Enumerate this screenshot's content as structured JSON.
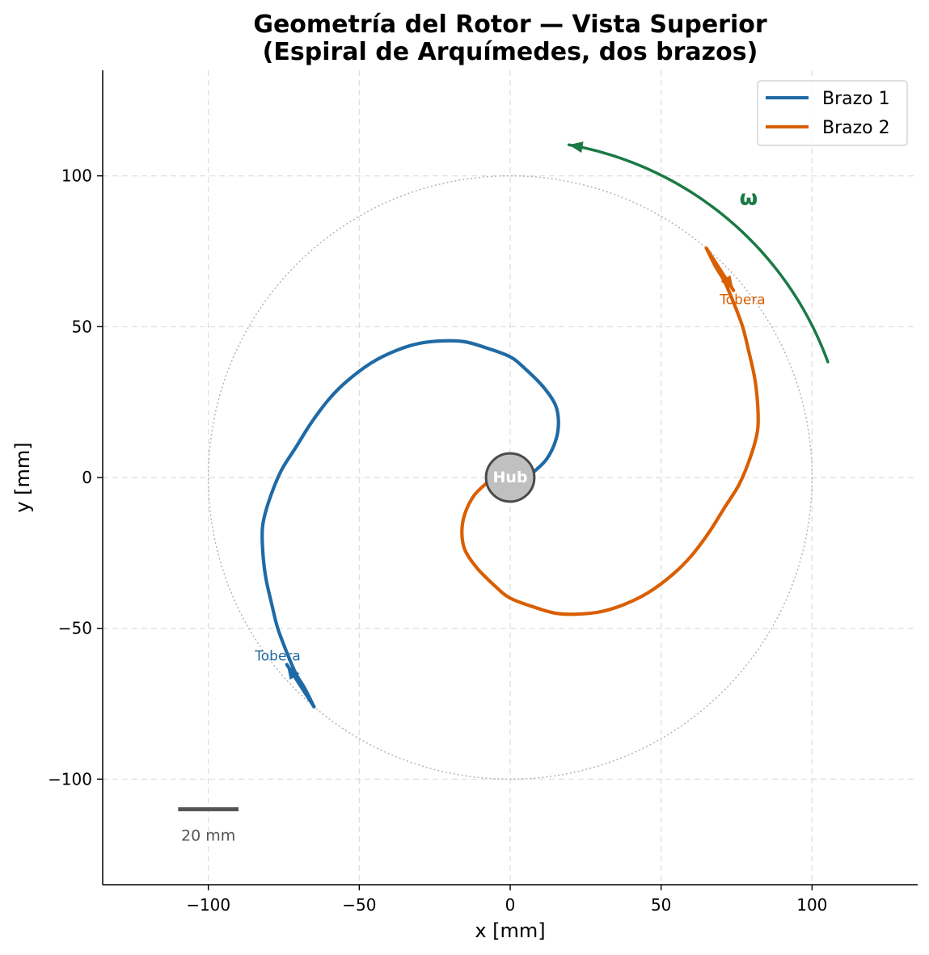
{
  "chart_data": {
    "type": "line",
    "title": [
      "Geometría del Rotor — Vista Superior",
      "(Espiral de Arquímedes, dos brazos)"
    ],
    "xlabel": "x  [mm]",
    "ylabel": "y  [mm]",
    "xlim": [
      -135,
      135
    ],
    "ylim": [
      -135,
      135
    ],
    "xticks": [
      -100,
      -50,
      0,
      50,
      100
    ],
    "yticks": [
      -100,
      -50,
      0,
      50,
      100
    ],
    "xtick_labels": [
      "−100",
      "−50",
      "0",
      "50",
      "100"
    ],
    "ytick_labels": [
      "−100",
      "−50",
      "0",
      "50",
      "100"
    ],
    "grid": true,
    "legend_position": "top-right",
    "series": [
      {
        "name": "Brazo 1",
        "color": "#1f6aa5",
        "x": [
          8,
          12,
          15,
          16,
          15,
          11,
          5,
          0,
          -8,
          -15,
          -22,
          -30,
          -38,
          -46,
          -54,
          -60,
          -66,
          -71,
          -76,
          -80,
          -82,
          -82,
          -81,
          -79,
          -77,
          -74,
          -71,
          -68,
          -65
        ],
        "y": [
          2,
          6,
          12,
          18,
          24,
          30,
          36,
          40,
          43,
          45,
          45.3,
          44.5,
          42,
          38,
          32,
          26,
          18,
          10,
          2,
          -8,
          -16,
          -24,
          -33,
          -42,
          -50,
          -58,
          -65,
          -70,
          -76
        ]
      },
      {
        "name": "Brazo 2",
        "color": "#d95f02",
        "x": [
          -8,
          -12,
          -15,
          -16,
          -15,
          -11,
          -5,
          0,
          8,
          15,
          22,
          30,
          38,
          46,
          54,
          60,
          66,
          71,
          76,
          80,
          82,
          82,
          81,
          79,
          77,
          74,
          71,
          68,
          65
        ],
        "y": [
          -2,
          -6,
          -12,
          -18,
          -24,
          -30,
          -36,
          -40,
          -43,
          -45,
          -45.3,
          -44.5,
          -42,
          -38,
          -32,
          -26,
          -18,
          -10,
          -2,
          8,
          16,
          24,
          33,
          42,
          50,
          58,
          65,
          70,
          76
        ]
      }
    ],
    "reference_circle": {
      "radius": 100,
      "color": "#b0b0b0"
    },
    "hub": {
      "label": "Hub",
      "radius": 8,
      "color": "#c0c0c0"
    },
    "annotations": [
      {
        "text": "Tobera",
        "x": -77,
        "y": -59,
        "color": "#1f6aa5"
      },
      {
        "text": "Tobera",
        "x": 77,
        "y": 59,
        "color": "#d95f02"
      },
      {
        "text": "ω",
        "x": 79,
        "y": 92,
        "color": "#1a7a44"
      }
    ],
    "nozzle_arrows": [
      {
        "color": "#1f6aa5",
        "from": [
          -65,
          -76
        ],
        "to": [
          -74,
          -62
        ]
      },
      {
        "color": "#d95f02",
        "from": [
          65,
          76
        ],
        "to": [
          74,
          62
        ]
      }
    ],
    "rotation_arrow": {
      "color": "#1a7a44",
      "radius": 112,
      "angle_start_deg": 20,
      "angle_end_deg": 80
    },
    "scale_bar": {
      "label": "20 mm",
      "x_start": -110,
      "x_end": -90,
      "y": -110,
      "color": "#555555"
    }
  }
}
